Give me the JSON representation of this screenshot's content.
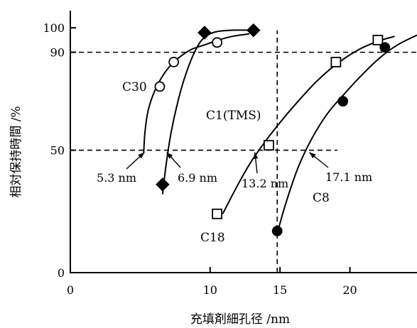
{
  "chart_data": {
    "type": "scatter",
    "xlabel": "充填剤細孔径 /nm",
    "ylabel": "相対保持時間 /%",
    "xlim": [
      0,
      24.8
    ],
    "ylim": [
      0,
      107
    ],
    "x_ticks": [
      {
        "value": 0,
        "label": "0"
      },
      {
        "value": 10,
        "label": "10"
      },
      {
        "value": 15,
        "label": "15"
      },
      {
        "value": 20,
        "label": "20"
      }
    ],
    "y_ticks": [
      {
        "value": 0,
        "label": "0"
      },
      {
        "value": 50,
        "label": "50"
      },
      {
        "value": 90,
        "label": "90"
      },
      {
        "value": 100,
        "label": "100"
      }
    ],
    "grid": false,
    "reference_lines": [
      {
        "orientation": "horizontal",
        "value": 90,
        "style": "dashed",
        "x_range": [
          0,
          24.8
        ]
      },
      {
        "orientation": "horizontal",
        "value": 50,
        "style": "dashed",
        "x_range": [
          0,
          19.1
        ]
      },
      {
        "orientation": "vertical",
        "value": 14.8,
        "style": "dashed",
        "y_range": [
          0,
          99
        ]
      }
    ],
    "series": [
      {
        "name": "C30",
        "marker": "circle-open",
        "points": [
          [
            6.4,
            76
          ],
          [
            7.4,
            86
          ],
          [
            10.5,
            94
          ]
        ],
        "curve": [
          [
            5.25,
            49
          ],
          [
            5.35,
            58
          ],
          [
            5.6,
            67
          ],
          [
            6.1,
            75
          ],
          [
            6.8,
            82
          ],
          [
            7.6,
            87
          ],
          [
            8.6,
            91
          ],
          [
            9.6,
            93
          ],
          [
            10.6,
            95
          ],
          [
            11.6,
            96.5
          ],
          [
            12.8,
            97.5
          ]
        ]
      },
      {
        "name": "C1(TMS)",
        "marker": "diamond-filled",
        "points": [
          [
            6.6,
            36
          ],
          [
            9.6,
            98
          ],
          [
            13.1,
            99
          ]
        ],
        "curve": [
          [
            6.6,
            32
          ],
          [
            6.85,
            44
          ],
          [
            7.2,
            57
          ],
          [
            7.7,
            70
          ],
          [
            8.2,
            80
          ],
          [
            8.8,
            89
          ],
          [
            9.4,
            95
          ],
          [
            10.2,
            98
          ],
          [
            11.5,
            99
          ],
          [
            13.4,
            99
          ]
        ]
      },
      {
        "name": "C18",
        "marker": "square-open",
        "points": [
          [
            10.5,
            24
          ],
          [
            14.2,
            52
          ],
          [
            19.0,
            86
          ],
          [
            22.0,
            95
          ]
        ],
        "curve": [
          [
            10.9,
            24
          ],
          [
            11.9,
            35
          ],
          [
            12.9,
            45
          ],
          [
            14.0,
            54
          ],
          [
            15.1,
            62
          ],
          [
            16.3,
            70
          ],
          [
            17.6,
            78
          ],
          [
            19.0,
            85
          ],
          [
            20.6,
            91
          ],
          [
            22.0,
            94.5
          ],
          [
            23.2,
            96.5
          ]
        ]
      },
      {
        "name": "C8",
        "marker": "circle-filled",
        "points": [
          [
            14.8,
            17
          ],
          [
            19.5,
            70
          ],
          [
            22.5,
            92
          ]
        ],
        "curve": [
          [
            14.75,
            15
          ],
          [
            15.4,
            28
          ],
          [
            16.3,
            43
          ],
          [
            17.3,
            55
          ],
          [
            18.4,
            65
          ],
          [
            19.6,
            73
          ],
          [
            20.9,
            81
          ],
          [
            22.2,
            88
          ],
          [
            23.4,
            93
          ],
          [
            24.8,
            97
          ]
        ]
      }
    ],
    "annotations": [
      {
        "text": "5.3 nm",
        "arrow_to": [
          5.3,
          50
        ]
      },
      {
        "text": "6.9 nm",
        "arrow_to": [
          6.9,
          50
        ]
      },
      {
        "text": "13.2 nm",
        "arrow_to": [
          13.2,
          50
        ]
      },
      {
        "text": "17.1 nm",
        "arrow_to": [
          17.1,
          50
        ]
      }
    ]
  }
}
